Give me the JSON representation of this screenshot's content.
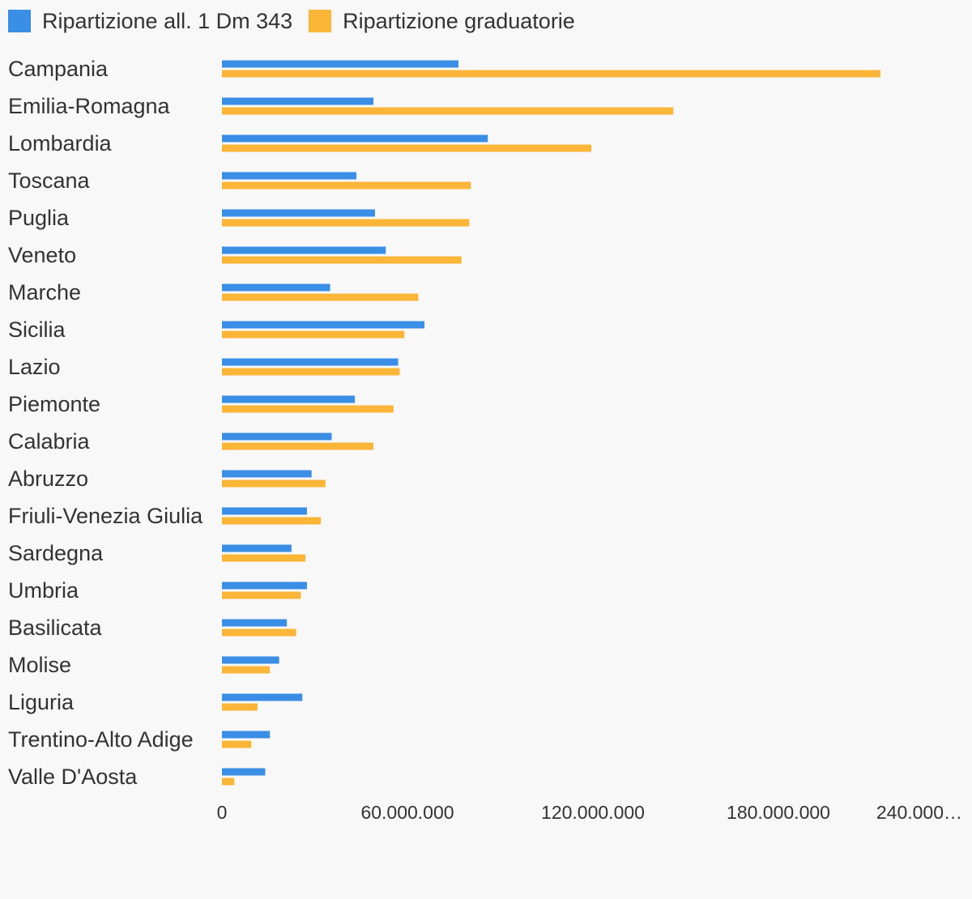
{
  "chart_data": {
    "type": "bar",
    "orientation": "horizontal",
    "legend_position": "top-left",
    "grid": false,
    "categories": [
      "Campania",
      "Emilia-Romagna",
      "Lombardia",
      "Toscana",
      "Puglia",
      "Veneto",
      "Marche",
      "Sicilia",
      "Lazio",
      "Piemonte",
      "Calabria",
      "Abruzzo",
      "Friuli-Venezia Giulia",
      "Sardegna",
      "Umbria",
      "Basilicata",
      "Molise",
      "Liguria",
      "Trentino-Alto Adige",
      "Valle D'Aosta"
    ],
    "series": [
      {
        "name": "Ripartizione all. 1 Dm 343",
        "color": "#3a8ee6",
        "values": [
          76500000,
          49000000,
          86000000,
          43500000,
          49500000,
          53000000,
          35000000,
          65500000,
          57000000,
          43000000,
          35500000,
          29000000,
          27500000,
          22500000,
          27500000,
          21000000,
          18500000,
          26000000,
          15500000,
          14000000
        ]
      },
      {
        "name": "Ripartizione graduatorie",
        "color": "#fbb637",
        "values": [
          213000000,
          146000000,
          119500000,
          80500000,
          80000000,
          77500000,
          63500000,
          59000000,
          57500000,
          55500000,
          49000000,
          33500000,
          32000000,
          27000000,
          25500000,
          24000000,
          15500000,
          11500000,
          9500000,
          4000000
        ]
      }
    ],
    "xlim": [
      0,
      240000000
    ],
    "x_ticks": [
      "0",
      "60.000.000",
      "120.000.000",
      "180.000.000",
      "240.000…"
    ]
  }
}
